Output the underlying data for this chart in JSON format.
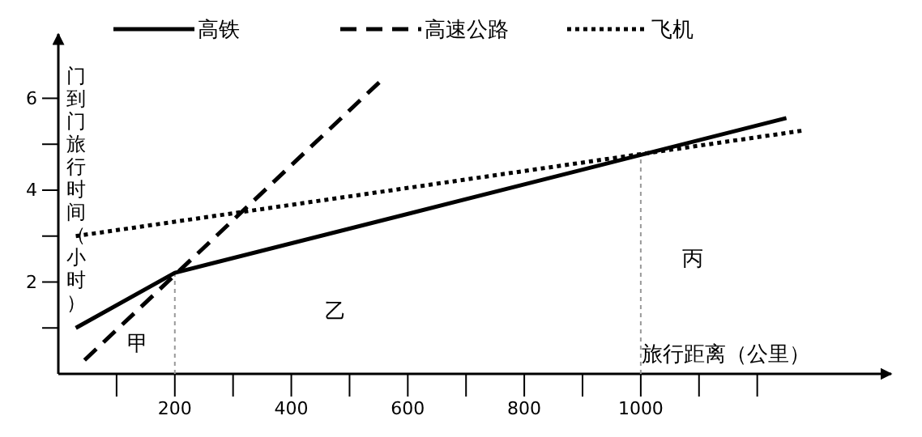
{
  "chart_data": {
    "type": "line",
    "xlabel": "旅行距离（公里）",
    "ylabel": "门到门旅行时间（小时）",
    "xlim": [
      0,
      1430
    ],
    "ylim": [
      0,
      7.4
    ],
    "xticks": [
      {
        "value": 100,
        "label": null
      },
      200,
      {
        "value": 300,
        "label": null
      },
      400,
      {
        "value": 500,
        "label": null
      },
      600,
      {
        "value": 700,
        "label": null
      },
      800,
      {
        "value": 900,
        "label": null
      },
      1000,
      {
        "value": 1100,
        "label": null
      },
      {
        "value": 1200,
        "label": null
      }
    ],
    "yticks": [
      {
        "value": 1,
        "label": null
      },
      2,
      {
        "value": 3,
        "label": null
      },
      4,
      {
        "value": 5,
        "label": null
      },
      6
    ],
    "series": [
      {
        "name": "高铁",
        "color": "#000000",
        "line_style": "solid",
        "x": [
          30,
          200,
          1250
        ],
        "values": [
          1.0,
          2.2,
          5.57
        ]
      },
      {
        "name": "高速公路",
        "color": "#000000",
        "line_style": "dashed",
        "x": [
          45,
          552
        ],
        "values": [
          0.3,
          6.36
        ]
      },
      {
        "name": "飞机",
        "color": "#000000",
        "line_style": "dotted",
        "x": [
          30,
          1280
        ],
        "values": [
          3.0,
          5.3
        ]
      }
    ],
    "ref_lines": [
      {
        "axis": "x",
        "value": 200,
        "color": "#999999",
        "line_style": "dotted"
      },
      {
        "axis": "x",
        "value": 1000,
        "color": "#999999",
        "line_style": "dotted"
      }
    ],
    "annotations": [
      "甲",
      "乙",
      "丙"
    ],
    "legend": "top",
    "marker": "none",
    "grid": false
  }
}
